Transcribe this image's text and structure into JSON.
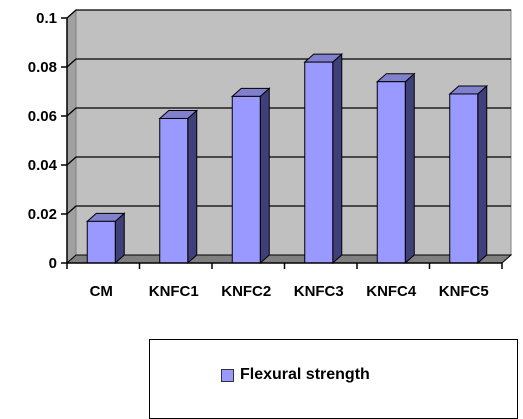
{
  "chart_data": {
    "type": "bar",
    "style": "3d-column",
    "categories": [
      "CM",
      "KNFC1",
      "KNFC2",
      "KNFC3",
      "KNFC4",
      "KNFC5"
    ],
    "series": [
      {
        "name": "Flexural strength",
        "values": [
          0.017,
          0.059,
          0.068,
          0.082,
          0.074,
          0.069
        ]
      }
    ],
    "ylim": [
      0,
      0.1
    ],
    "yticks": [
      "0",
      "0.02",
      "0.04",
      "0.06",
      "0.08",
      "0.1"
    ],
    "ytick_values": [
      0,
      0.02,
      0.04,
      0.06,
      0.08,
      0.1
    ],
    "grid": true,
    "legend_position": "bottom",
    "colors": {
      "bar_front": "#9999ff",
      "bar_side": "#3f3f7a",
      "bar_top": "#8080cc",
      "plot_back": "#c0c0c0",
      "plot_floor": "#808080",
      "gridline": "#000000"
    }
  },
  "legend": {
    "label": "Flexural strength"
  }
}
